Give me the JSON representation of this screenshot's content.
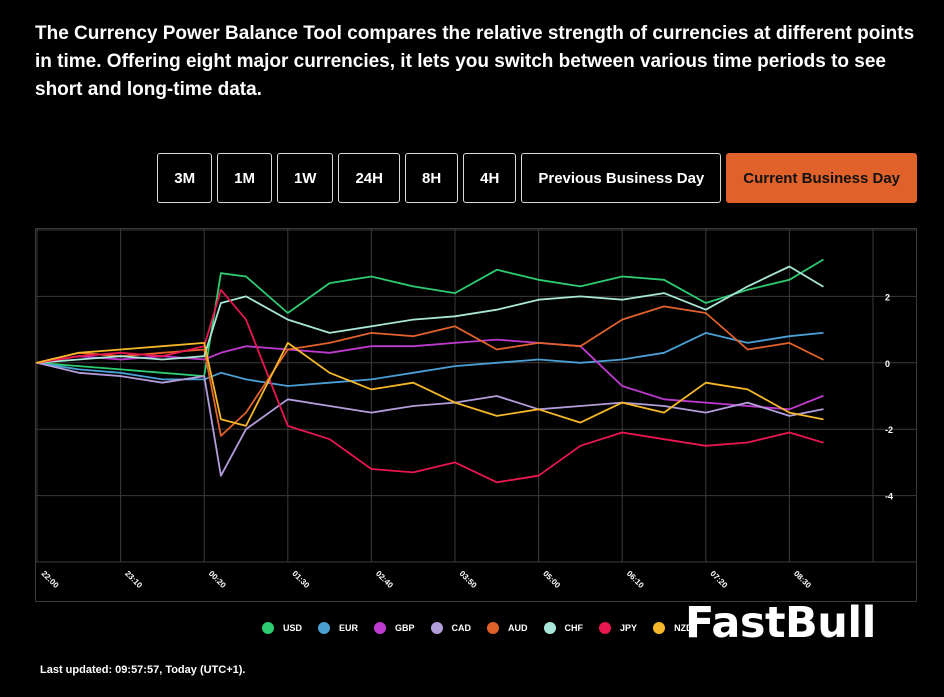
{
  "intro": "The Currency Power Balance Tool compares the relative strength of currencies at different points in time. Offering eight major currencies, it lets you switch between various time periods to see short and long-time data.",
  "tabs": [
    {
      "label": "3M",
      "active": false
    },
    {
      "label": "1M",
      "active": false
    },
    {
      "label": "1W",
      "active": false
    },
    {
      "label": "24H",
      "active": false
    },
    {
      "label": "8H",
      "active": false
    },
    {
      "label": "4H",
      "active": false
    },
    {
      "label": "Previous Business Day",
      "active": false
    },
    {
      "label": "Current Business Day",
      "active": true
    }
  ],
  "colors": {
    "USD": "#2ecc71",
    "EUR": "#4a9fd4",
    "GBP": "#c03ad0",
    "CAD": "#b39ddb",
    "AUD": "#e0622a",
    "CHF": "#a8e6d8",
    "JPY": "#e8174f",
    "NZD": "#f5b72a",
    "accent": "#e0622a",
    "grid": "#3a3a3a"
  },
  "legend": [
    "USD",
    "EUR",
    "GBP",
    "CAD",
    "AUD",
    "CHF",
    "JPY",
    "NZD"
  ],
  "chart_data": {
    "type": "line",
    "title": "",
    "xlabel": "",
    "ylabel": "",
    "x_labels": [
      "22:00",
      "23:10",
      "00:20",
      "01:30",
      "02:40",
      "03:50",
      "05:00",
      "06:10",
      "07:20",
      "08:30"
    ],
    "x_range": [
      0,
      10
    ],
    "ylim": [
      -6,
      4
    ],
    "y_ticks": [
      2,
      0,
      -2,
      -4
    ],
    "grid": true,
    "series": [
      {
        "name": "USD",
        "x": [
          0,
          0.5,
          1,
          1.5,
          2,
          2.2,
          2.5,
          3,
          3.5,
          4,
          4.5,
          5,
          5.5,
          6,
          6.5,
          7,
          7.5,
          8,
          8.5,
          9,
          9.4
        ],
        "values": [
          0,
          -0.1,
          -0.2,
          -0.3,
          -0.4,
          2.7,
          2.6,
          1.5,
          2.4,
          2.6,
          2.3,
          2.1,
          2.8,
          2.5,
          2.3,
          2.6,
          2.5,
          1.8,
          2.2,
          2.5,
          3.1
        ]
      },
      {
        "name": "EUR",
        "x": [
          0,
          0.5,
          1,
          1.5,
          2,
          2.2,
          2.5,
          3,
          3.5,
          4,
          4.5,
          5,
          5.5,
          6,
          6.5,
          7,
          7.5,
          8,
          8.5,
          9,
          9.4
        ],
        "values": [
          0,
          -0.2,
          -0.3,
          -0.5,
          -0.5,
          -0.3,
          -0.5,
          -0.7,
          -0.6,
          -0.5,
          -0.3,
          -0.1,
          0,
          0.1,
          0,
          0.1,
          0.3,
          0.9,
          0.6,
          0.8,
          0.9
        ]
      },
      {
        "name": "GBP",
        "x": [
          0,
          0.5,
          1,
          1.5,
          2,
          2.2,
          2.5,
          3,
          3.5,
          4,
          4.5,
          5,
          5.5,
          6,
          6.5,
          7,
          7.5,
          8,
          8.5,
          9,
          9.4
        ],
        "values": [
          0,
          0.2,
          0.1,
          0.2,
          0.1,
          0.3,
          0.5,
          0.4,
          0.3,
          0.5,
          0.5,
          0.6,
          0.7,
          0.6,
          0.5,
          -0.7,
          -1.1,
          -1.2,
          -1.3,
          -1.4,
          -1.0
        ]
      },
      {
        "name": "CAD",
        "x": [
          0,
          0.5,
          1,
          1.5,
          2,
          2.2,
          2.5,
          3,
          3.5,
          4,
          4.5,
          5,
          5.5,
          6,
          6.5,
          7,
          7.5,
          8,
          8.5,
          9,
          9.4
        ],
        "values": [
          0,
          -0.3,
          -0.4,
          -0.6,
          -0.4,
          -3.4,
          -2.0,
          -1.1,
          -1.3,
          -1.5,
          -1.3,
          -1.2,
          -1.0,
          -1.4,
          -1.3,
          -1.2,
          -1.3,
          -1.5,
          -1.2,
          -1.6,
          -1.4
        ]
      },
      {
        "name": "AUD",
        "x": [
          0,
          0.5,
          1,
          1.5,
          2,
          2.2,
          2.5,
          3,
          3.5,
          4,
          4.5,
          5,
          5.5,
          6,
          6.5,
          7,
          7.5,
          8,
          8.5,
          9,
          9.4
        ],
        "values": [
          0,
          0.3,
          0.2,
          0.3,
          0.4,
          -2.2,
          -1.5,
          0.4,
          0.6,
          0.9,
          0.8,
          1.1,
          0.4,
          0.6,
          0.5,
          1.3,
          1.7,
          1.5,
          0.4,
          0.6,
          0.1
        ]
      },
      {
        "name": "CHF",
        "x": [
          0,
          0.5,
          1,
          1.5,
          2,
          2.2,
          2.5,
          3,
          3.5,
          4,
          4.5,
          5,
          5.5,
          6,
          6.5,
          7,
          7.5,
          8,
          8.5,
          9,
          9.4
        ],
        "values": [
          0,
          0.1,
          0.2,
          0.1,
          0.2,
          1.8,
          2.0,
          1.3,
          0.9,
          1.1,
          1.3,
          1.4,
          1.6,
          1.9,
          2.0,
          1.9,
          2.1,
          1.6,
          2.3,
          2.9,
          2.3
        ]
      },
      {
        "name": "JPY",
        "x": [
          0,
          0.5,
          1,
          1.5,
          2,
          2.2,
          2.5,
          3,
          3.5,
          4,
          4.5,
          5,
          5.5,
          6,
          6.5,
          7,
          7.5,
          8,
          8.5,
          9,
          9.4
        ],
        "values": [
          0,
          0.2,
          0.3,
          0.2,
          0.5,
          2.2,
          1.3,
          -1.9,
          -2.3,
          -3.2,
          -3.3,
          -3.0,
          -3.6,
          -3.4,
          -2.5,
          -2.1,
          -2.3,
          -2.5,
          -2.4,
          -2.1,
          -2.4
        ]
      },
      {
        "name": "NZD",
        "x": [
          0,
          0.5,
          1,
          1.5,
          2,
          2.2,
          2.5,
          3,
          3.5,
          4,
          4.5,
          5,
          5.5,
          6,
          6.5,
          7,
          7.5,
          8,
          8.5,
          9,
          9.4
        ],
        "values": [
          0,
          0.3,
          0.4,
          0.5,
          0.6,
          -1.7,
          -1.9,
          0.6,
          -0.3,
          -0.8,
          -0.6,
          -1.2,
          -1.6,
          -1.4,
          -1.8,
          -1.2,
          -1.5,
          -0.6,
          -0.8,
          -1.5,
          -1.7
        ]
      }
    ]
  },
  "last_updated": "Last updated: 09:57:57, Today (UTC+1).",
  "logo": "FastBull"
}
